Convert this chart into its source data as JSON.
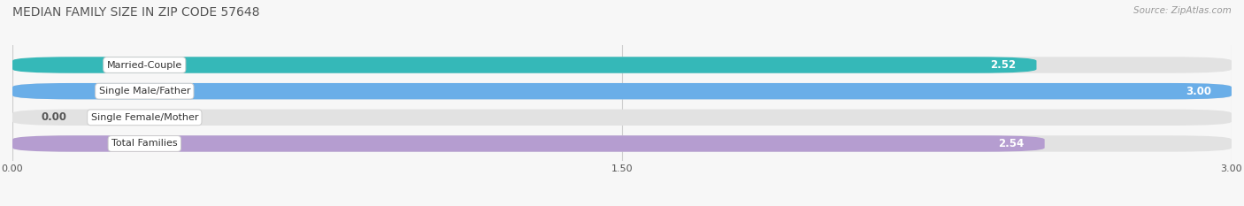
{
  "title": "MEDIAN FAMILY SIZE IN ZIP CODE 57648",
  "source": "Source: ZipAtlas.com",
  "categories": [
    "Married-Couple",
    "Single Male/Father",
    "Single Female/Mother",
    "Total Families"
  ],
  "values": [
    2.52,
    3.0,
    0.0,
    2.54
  ],
  "colors": [
    "#35b8b8",
    "#6aaee8",
    "#f4a8bc",
    "#b59dd0"
  ],
  "xlim": [
    0,
    3.0
  ],
  "xticks": [
    0.0,
    1.5,
    3.0
  ],
  "xticklabels": [
    "0.00",
    "1.50",
    "3.00"
  ],
  "bar_height": 0.62,
  "figsize": [
    14.06,
    2.33
  ],
  "dpi": 100,
  "label_fontsize": 8.0,
  "value_fontsize": 8.5,
  "title_fontsize": 10,
  "source_fontsize": 7.5,
  "bg_color": "#f7f7f7",
  "bar_bg_color": "#e2e2e2"
}
